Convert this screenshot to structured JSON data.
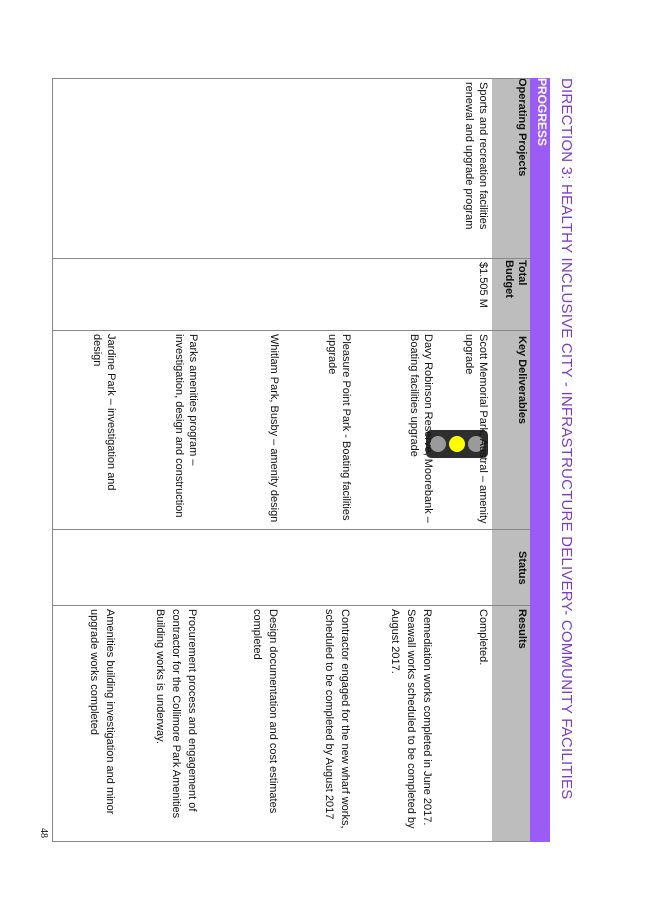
{
  "page": {
    "title": "DIRECTION 3: HEALTHY INCLUSIVE CITY - INFRASTRUCTURE DELIVERY- COMMUNITY FACILITIES",
    "section_label": "PROGRESS",
    "page_number": "48"
  },
  "table": {
    "headers": {
      "operating_projects": "Operating Projects",
      "total_budget": "Total Budget",
      "key_deliverables": "Key Deliverables",
      "status": "Status",
      "results": "Results"
    },
    "project": "Sports and recreation facilities renewal and upgrade program",
    "budget": "$1.505 M",
    "status_light": {
      "active": "amber",
      "colors": {
        "red_off": "#9a9a9a",
        "amber_on": "#ffff00",
        "green_off": "#9a9a9a"
      }
    },
    "rows": [
      {
        "deliverable": "Scott Memorial Park, Austral – amenity upgrade",
        "result": "Completed."
      },
      {
        "deliverable": "Davy Robinson Reserve, Moorebank – Boating facilities upgrade",
        "result": "Remediation works completed in June 2017. Seawall works scheduled to be completed by August 2017."
      },
      {
        "deliverable": "Pleasure Point Park - Boating facilities upgrade",
        "result": "Contractor engaged for the new wharf works, scheduled to be completed by August 2017"
      },
      {
        "deliverable": "Whitlam Park, Busby – amenity design",
        "result": "Design documentation and cost estimates completed"
      },
      {
        "deliverable": "Parks amenities program – investigation, design and construction",
        "result": "Procurement process and engagement of contractor for the Collimore Park Amenities Building works is underway."
      },
      {
        "deliverable": "Jardine Park – investigation and design",
        "result": "Amenities building investigation and minor upgrade works completed"
      }
    ]
  }
}
